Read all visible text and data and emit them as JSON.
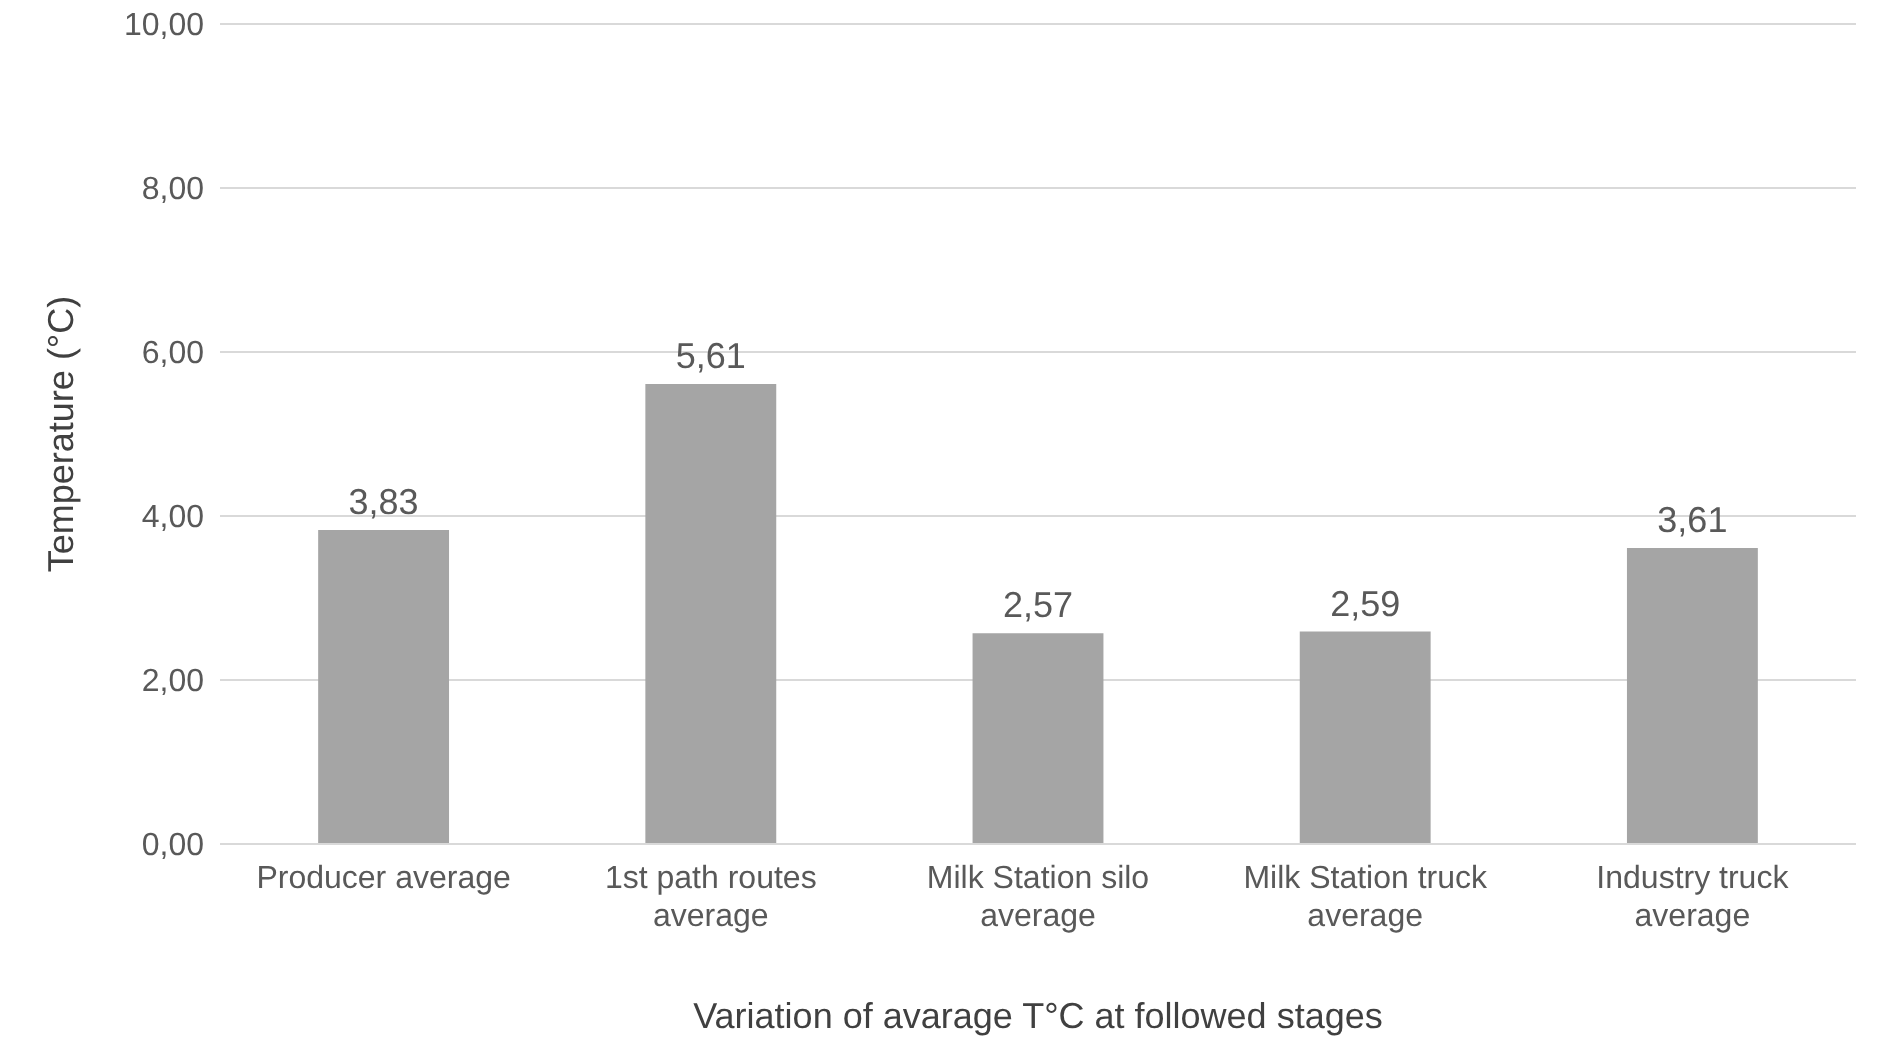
{
  "chart_data": {
    "type": "bar",
    "xlabel": "Variation of avarage T°C at followed stages",
    "ylabel": "Temperature (°C)",
    "categories": [
      "Producer average",
      "1st path routes average",
      "Milk Station silo average",
      "Milk Station truck average",
      "Industry truck average"
    ],
    "values": [
      3.83,
      5.61,
      2.57,
      2.59,
      3.61
    ],
    "value_labels": [
      "3,83",
      "5,61",
      "2,57",
      "2,59",
      "3,61"
    ],
    "color": "#a5a5a5",
    "ylim": [
      0,
      10
    ],
    "yticks": [
      {
        "value": 0,
        "label": "0,00"
      },
      {
        "value": 2,
        "label": "2,00"
      },
      {
        "value": 4,
        "label": "4,00"
      },
      {
        "value": 6,
        "label": "6,00"
      },
      {
        "value": 8,
        "label": "8,00"
      },
      {
        "value": 10,
        "label": "10,00"
      }
    ],
    "grid": "y",
    "legend": false
  }
}
